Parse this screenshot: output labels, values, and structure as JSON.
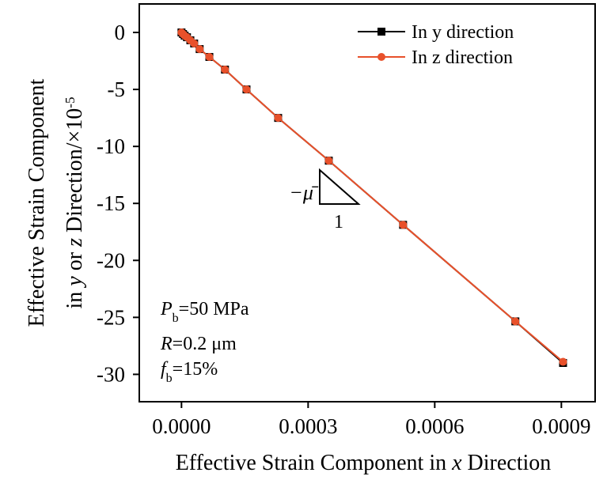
{
  "chart_data": {
    "type": "line",
    "xlabel": [
      {
        "t": "Effective Strain Component in "
      },
      {
        "t": "x",
        "italic": true
      },
      {
        "t": " Direction"
      }
    ],
    "ylabel": [
      [
        {
          "t": "Effective Strain Component"
        }
      ],
      [
        {
          "t": "in "
        },
        {
          "t": "y",
          "italic": true
        },
        {
          "t": " or "
        },
        {
          "t": "z",
          "italic": true
        },
        {
          "t": " Direction/×10"
        },
        {
          "t": "-5",
          "sup": true
        }
      ]
    ],
    "x": [
      0,
      3.7e-06,
      7.5e-06,
      1.3e-05,
      2.1e-05,
      3e-05,
      4.3e-05,
      6.6e-05,
      0.000103,
      0.000154,
      0.000229,
      0.000349,
      0.000525,
      0.000791,
      0.000904
    ],
    "series": [
      {
        "name": "In y direction",
        "color": "#000000",
        "marker": "square",
        "values": [
          0,
          -0.14,
          -0.28,
          -0.42,
          -0.69,
          -0.97,
          -1.46,
          -2.15,
          -3.26,
          -5.0,
          -7.5,
          -11.25,
          -16.88,
          -25.35,
          -29.0
        ]
      },
      {
        "name": "In z direction",
        "color": "#e8512b",
        "marker": "circle",
        "values": [
          0,
          -0.14,
          -0.28,
          -0.42,
          -0.69,
          -0.97,
          -1.46,
          -2.15,
          -3.26,
          -5.0,
          -7.5,
          -11.25,
          -16.88,
          -25.35,
          -28.9
        ]
      }
    ],
    "xlim": [
      -0.0001,
      0.00098
    ],
    "xticks": [
      {
        "value": 0,
        "label": "0.0000"
      },
      0.0003,
      0.0006,
      0.0009
    ],
    "ylim": [
      -32.4,
      2.5
    ],
    "yticks": [
      0,
      -5,
      -10,
      -15,
      -20,
      -25,
      -30
    ],
    "legend": "upper right",
    "slope_label": "−μ̄",
    "slope_run": "1",
    "params": [
      {
        "symbol": "P",
        "sub": "b",
        "text": "=50 MPa"
      },
      {
        "symbol": "R",
        "text": "=0.2 μm"
      },
      {
        "symbol": "f",
        "sub": "b",
        "text": "=15%"
      }
    ]
  }
}
